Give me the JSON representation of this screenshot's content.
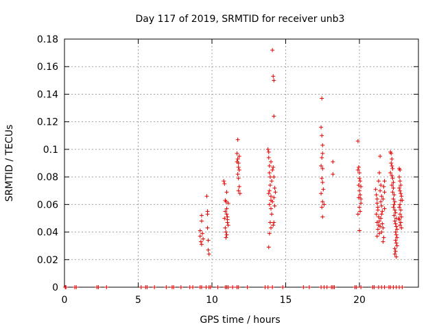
{
  "chart_data": {
    "type": "scatter",
    "title": "Day 117 of 2019, SRMTID for receiver unb3",
    "xlabel": "GPS time / hours",
    "ylabel": "SRMTID / TECUs",
    "xlim": [
      0,
      24
    ],
    "ylim": [
      0,
      0.18
    ],
    "xticks": [
      0,
      5,
      10,
      15,
      20
    ],
    "xtick_labels": [
      "0",
      "5",
      "10",
      "15",
      "20"
    ],
    "yticks": [
      0,
      0.02,
      0.04,
      0.06,
      0.08,
      0.1,
      0.12,
      0.14,
      0.16,
      0.18
    ],
    "ytick_labels": [
      "0",
      "0.02",
      "0.04",
      "0.06",
      "0.08",
      "0.1",
      "0.12",
      "0.14",
      "0.16",
      "0.18"
    ],
    "grid": true,
    "marker": "+",
    "color": "#e00000",
    "series": [
      {
        "name": "SRMTID",
        "points": [
          [
            0.05,
            0
          ],
          [
            0.1,
            0
          ],
          [
            0.7,
            0
          ],
          [
            0.8,
            0
          ],
          [
            2.2,
            0
          ],
          [
            2.3,
            0
          ],
          [
            2.85,
            0
          ],
          [
            5.2,
            0
          ],
          [
            5.5,
            0
          ],
          [
            5.6,
            0
          ],
          [
            6.1,
            0
          ],
          [
            6.9,
            0
          ],
          [
            7.3,
            0
          ],
          [
            7.4,
            0
          ],
          [
            7.9,
            0
          ],
          [
            8.5,
            0
          ],
          [
            8.7,
            0
          ],
          [
            9.2,
            0
          ],
          [
            9.3,
            0
          ],
          [
            9.6,
            0
          ],
          [
            9.8,
            0
          ],
          [
            9.9,
            0
          ],
          [
            10.4,
            0
          ],
          [
            10.9,
            0
          ],
          [
            11.0,
            0
          ],
          [
            11.1,
            0
          ],
          [
            11.4,
            0
          ],
          [
            11.7,
            0
          ],
          [
            11.8,
            0
          ],
          [
            12.4,
            0
          ],
          [
            13.6,
            0
          ],
          [
            13.8,
            0
          ],
          [
            14.1,
            0
          ],
          [
            14.8,
            0
          ],
          [
            16.2,
            0
          ],
          [
            16.6,
            0
          ],
          [
            17.4,
            0
          ],
          [
            17.6,
            0
          ],
          [
            17.8,
            0
          ],
          [
            18.1,
            0
          ],
          [
            18.2,
            0
          ],
          [
            18.3,
            0
          ],
          [
            19.7,
            0
          ],
          [
            19.8,
            0
          ],
          [
            20.1,
            0
          ],
          [
            20.9,
            0
          ],
          [
            21.0,
            0
          ],
          [
            21.3,
            0
          ],
          [
            21.5,
            0
          ],
          [
            21.7,
            0
          ],
          [
            22.0,
            0
          ],
          [
            22.1,
            0
          ],
          [
            22.3,
            0
          ],
          [
            22.5,
            0
          ],
          [
            22.7,
            0
          ],
          [
            22.9,
            0
          ],
          [
            9.2,
            0.041
          ],
          [
            9.2,
            0.037
          ],
          [
            9.25,
            0.033
          ],
          [
            9.3,
            0.031
          ],
          [
            9.3,
            0.052
          ],
          [
            9.35,
            0.039
          ],
          [
            9.4,
            0.035
          ],
          [
            9.3,
            0.048
          ],
          [
            9.65,
            0.066
          ],
          [
            9.7,
            0.053
          ],
          [
            9.7,
            0.043
          ],
          [
            9.75,
            0.034
          ],
          [
            9.75,
            0.027
          ],
          [
            9.8,
            0.024
          ],
          [
            9.7,
            0.055
          ],
          [
            10.8,
            0.077
          ],
          [
            10.85,
            0.075
          ],
          [
            10.9,
            0.063
          ],
          [
            10.95,
            0.062
          ],
          [
            11.0,
            0.057
          ],
          [
            11.0,
            0.053
          ],
          [
            11.05,
            0.051
          ],
          [
            11.05,
            0.049
          ],
          [
            11.1,
            0.045
          ],
          [
            10.9,
            0.043
          ],
          [
            10.95,
            0.04
          ],
          [
            11.0,
            0.038
          ],
          [
            10.85,
            0.05
          ],
          [
            11.1,
            0.061
          ],
          [
            11.0,
            0.069
          ],
          [
            10.9,
            0.055
          ],
          [
            11.05,
            0.047
          ],
          [
            10.95,
            0.036
          ],
          [
            11.75,
            0.107
          ],
          [
            11.7,
            0.097
          ],
          [
            11.75,
            0.093
          ],
          [
            11.8,
            0.09
          ],
          [
            11.8,
            0.087
          ],
          [
            11.85,
            0.085
          ],
          [
            11.75,
            0.082
          ],
          [
            11.8,
            0.079
          ],
          [
            11.85,
            0.073
          ],
          [
            11.8,
            0.07
          ],
          [
            11.9,
            0.068
          ],
          [
            11.7,
            0.091
          ],
          [
            11.85,
            0.095
          ],
          [
            13.8,
            0.1
          ],
          [
            13.85,
            0.098
          ],
          [
            13.85,
            0.094
          ],
          [
            13.9,
            0.088
          ],
          [
            13.9,
            0.083
          ],
          [
            13.95,
            0.08
          ],
          [
            13.95,
            0.074
          ],
          [
            13.9,
            0.07
          ],
          [
            14.0,
            0.066
          ],
          [
            14.0,
            0.063
          ],
          [
            13.9,
            0.06
          ],
          [
            14.0,
            0.057
          ],
          [
            14.05,
            0.053
          ],
          [
            13.95,
            0.047
          ],
          [
            14.0,
            0.043
          ],
          [
            13.9,
            0.039
          ],
          [
            13.85,
            0.029
          ],
          [
            14.05,
            0.077
          ],
          [
            14.1,
            0.085
          ],
          [
            14.0,
            0.091
          ],
          [
            13.85,
            0.068
          ],
          [
            14.1,
            0.062
          ],
          [
            14.1,
            0.172
          ],
          [
            14.15,
            0.153
          ],
          [
            14.2,
            0.15
          ],
          [
            14.2,
            0.124
          ],
          [
            14.15,
            0.087
          ],
          [
            14.2,
            0.08
          ],
          [
            14.25,
            0.072
          ],
          [
            14.2,
            0.065
          ],
          [
            14.25,
            0.059
          ],
          [
            14.2,
            0.047
          ],
          [
            14.15,
            0.045
          ],
          [
            14.3,
            0.069
          ],
          [
            17.45,
            0.137
          ],
          [
            17.4,
            0.116
          ],
          [
            17.45,
            0.11
          ],
          [
            17.5,
            0.103
          ],
          [
            17.5,
            0.097
          ],
          [
            17.45,
            0.094
          ],
          [
            17.4,
            0.088
          ],
          [
            17.5,
            0.086
          ],
          [
            17.45,
            0.079
          ],
          [
            17.5,
            0.076
          ],
          [
            17.55,
            0.071
          ],
          [
            17.4,
            0.068
          ],
          [
            17.5,
            0.062
          ],
          [
            17.45,
            0.058
          ],
          [
            17.5,
            0.051
          ],
          [
            17.6,
            0.06
          ],
          [
            18.2,
            0.091
          ],
          [
            18.2,
            0.082
          ],
          [
            19.9,
            0.106
          ],
          [
            19.95,
            0.087
          ],
          [
            19.9,
            0.085
          ],
          [
            20.0,
            0.083
          ],
          [
            20.0,
            0.079
          ],
          [
            20.05,
            0.077
          ],
          [
            19.95,
            0.074
          ],
          [
            20.1,
            0.073
          ],
          [
            20.0,
            0.07
          ],
          [
            20.05,
            0.067
          ],
          [
            19.95,
            0.065
          ],
          [
            20.1,
            0.061
          ],
          [
            20.0,
            0.058
          ],
          [
            20.05,
            0.055
          ],
          [
            19.9,
            0.053
          ],
          [
            20.0,
            0.041
          ],
          [
            20.1,
            0.064
          ],
          [
            21.1,
            0.071
          ],
          [
            21.15,
            0.067
          ],
          [
            21.2,
            0.064
          ],
          [
            21.2,
            0.061
          ],
          [
            21.25,
            0.058
          ],
          [
            21.25,
            0.056
          ],
          [
            21.15,
            0.053
          ],
          [
            21.3,
            0.051
          ],
          [
            21.2,
            0.047
          ],
          [
            21.3,
            0.045
          ],
          [
            21.25,
            0.042
          ],
          [
            21.35,
            0.039
          ],
          [
            21.2,
            0.037
          ],
          [
            21.4,
            0.095
          ],
          [
            21.35,
            0.083
          ],
          [
            21.3,
            0.077
          ],
          [
            21.45,
            0.074
          ],
          [
            21.4,
            0.07
          ],
          [
            21.5,
            0.066
          ],
          [
            21.45,
            0.062
          ],
          [
            21.5,
            0.059
          ],
          [
            21.55,
            0.055
          ],
          [
            21.45,
            0.05
          ],
          [
            21.55,
            0.046
          ],
          [
            21.6,
            0.043
          ],
          [
            21.5,
            0.04
          ],
          [
            21.65,
            0.036
          ],
          [
            21.6,
            0.033
          ],
          [
            21.7,
            0.077
          ],
          [
            21.65,
            0.073
          ],
          [
            21.7,
            0.069
          ],
          [
            21.6,
            0.064
          ],
          [
            21.7,
            0.057
          ],
          [
            21.5,
            0.053
          ],
          [
            21.35,
            0.048
          ],
          [
            21.4,
            0.044
          ],
          [
            22.1,
            0.098
          ],
          [
            22.15,
            0.097
          ],
          [
            22.2,
            0.093
          ],
          [
            22.15,
            0.09
          ],
          [
            22.2,
            0.088
          ],
          [
            22.25,
            0.086
          ],
          [
            22.1,
            0.083
          ],
          [
            22.2,
            0.081
          ],
          [
            22.25,
            0.079
          ],
          [
            22.3,
            0.076
          ],
          [
            22.2,
            0.074
          ],
          [
            22.3,
            0.072
          ],
          [
            22.25,
            0.069
          ],
          [
            22.35,
            0.067
          ],
          [
            22.3,
            0.064
          ],
          [
            22.4,
            0.062
          ],
          [
            22.35,
            0.06
          ],
          [
            22.3,
            0.058
          ],
          [
            22.4,
            0.056
          ],
          [
            22.45,
            0.054
          ],
          [
            22.35,
            0.052
          ],
          [
            22.5,
            0.05
          ],
          [
            22.4,
            0.048
          ],
          [
            22.45,
            0.046
          ],
          [
            22.5,
            0.044
          ],
          [
            22.55,
            0.042
          ],
          [
            22.45,
            0.04
          ],
          [
            22.5,
            0.038
          ],
          [
            22.55,
            0.036
          ],
          [
            22.45,
            0.034
          ],
          [
            22.5,
            0.032
          ],
          [
            22.55,
            0.03
          ],
          [
            22.4,
            0.028
          ],
          [
            22.45,
            0.026
          ],
          [
            22.4,
            0.024
          ],
          [
            22.5,
            0.022
          ],
          [
            22.7,
            0.086
          ],
          [
            22.75,
            0.085
          ],
          [
            22.7,
            0.08
          ],
          [
            22.75,
            0.077
          ],
          [
            22.8,
            0.074
          ],
          [
            22.7,
            0.072
          ],
          [
            22.75,
            0.07
          ],
          [
            22.8,
            0.068
          ],
          [
            22.85,
            0.066
          ],
          [
            22.8,
            0.063
          ],
          [
            22.75,
            0.06
          ],
          [
            22.7,
            0.058
          ],
          [
            22.8,
            0.056
          ],
          [
            22.75,
            0.053
          ],
          [
            22.85,
            0.051
          ],
          [
            22.7,
            0.049
          ],
          [
            22.8,
            0.047
          ],
          [
            22.75,
            0.045
          ],
          [
            22.85,
            0.043
          ],
          [
            22.9,
            0.063
          ],
          [
            22.65,
            0.05
          ]
        ]
      }
    ]
  }
}
